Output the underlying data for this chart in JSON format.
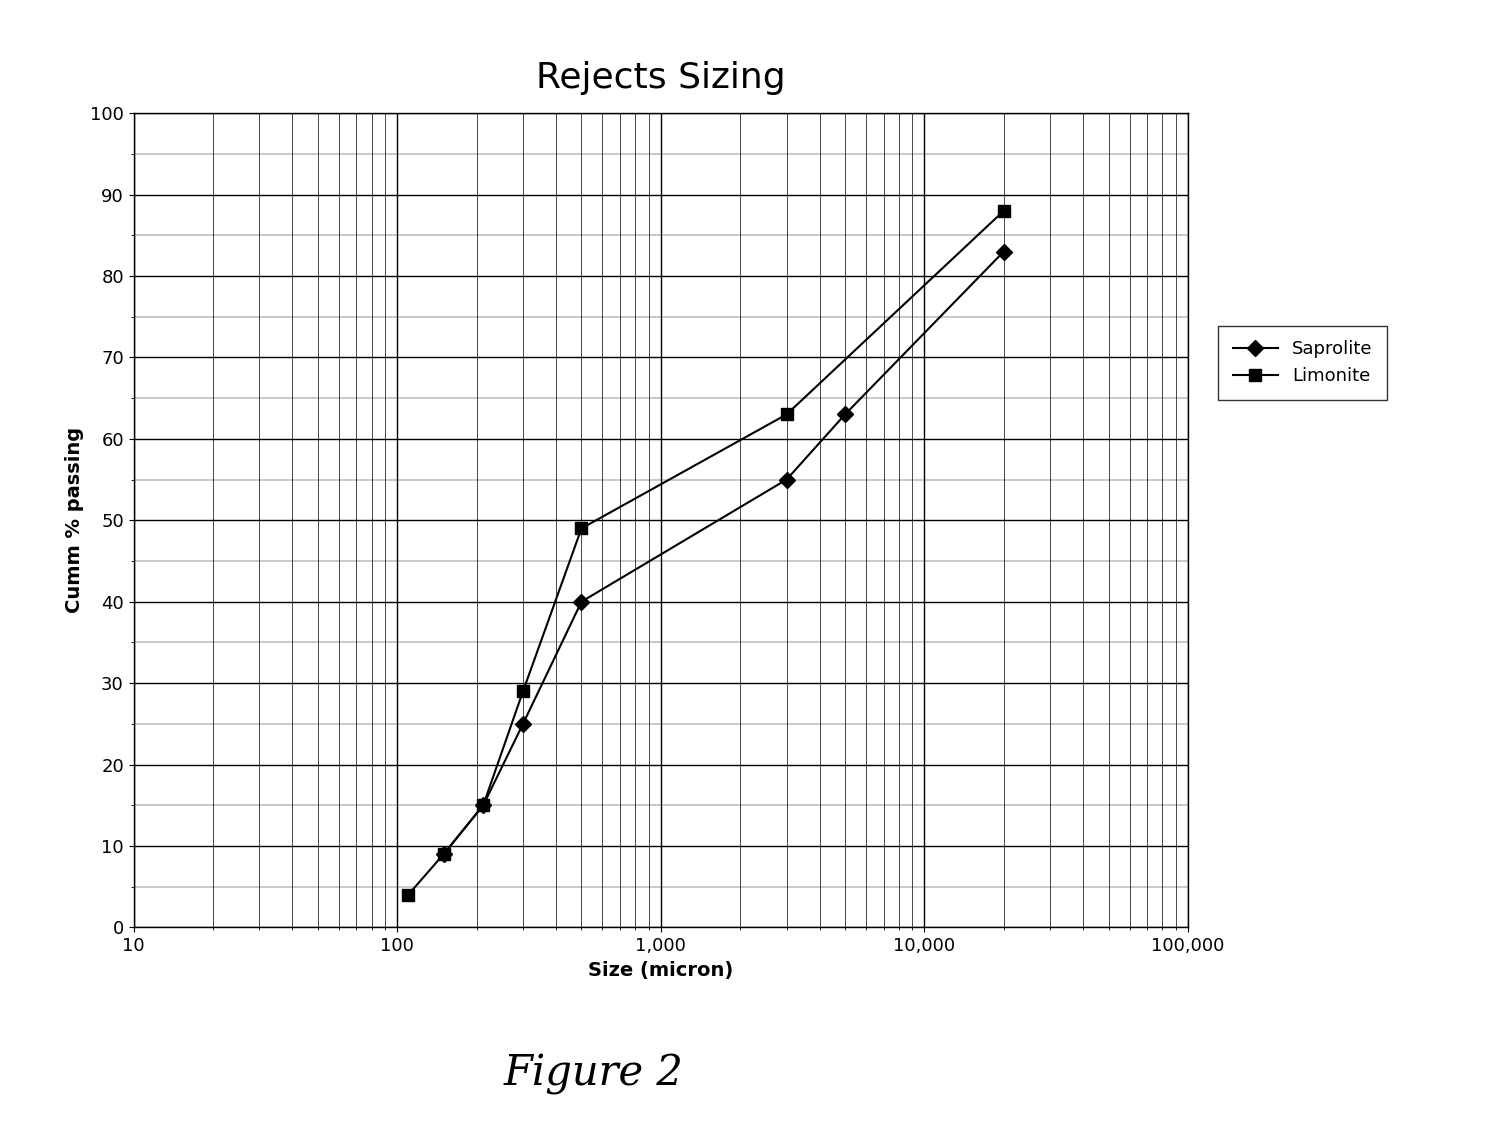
{
  "title": "Rejects Sizing",
  "xlabel": "Size (micron)",
  "ylabel": "Cumm % passing",
  "figure_label": "Figure 2",
  "saprolite_x": [
    150,
    212,
    300,
    500,
    3000,
    5000,
    20000
  ],
  "saprolite_y": [
    9,
    15,
    25,
    40,
    55,
    63,
    83
  ],
  "limonite_x": [
    110,
    150,
    212,
    300,
    500,
    3000,
    20000
  ],
  "limonite_y": [
    4,
    9,
    15,
    29,
    49,
    63,
    88
  ],
  "xlim": [
    10,
    100000
  ],
  "ylim": [
    0,
    100
  ],
  "background_color": "#ffffff",
  "plot_bg_color": "#ffffff",
  "line_color": "#000000",
  "saprolite_marker": "D",
  "limonite_marker": "s",
  "title_fontsize": 26,
  "label_fontsize": 14,
  "tick_fontsize": 13,
  "legend_fontsize": 13,
  "figure_label_fontsize": 30
}
